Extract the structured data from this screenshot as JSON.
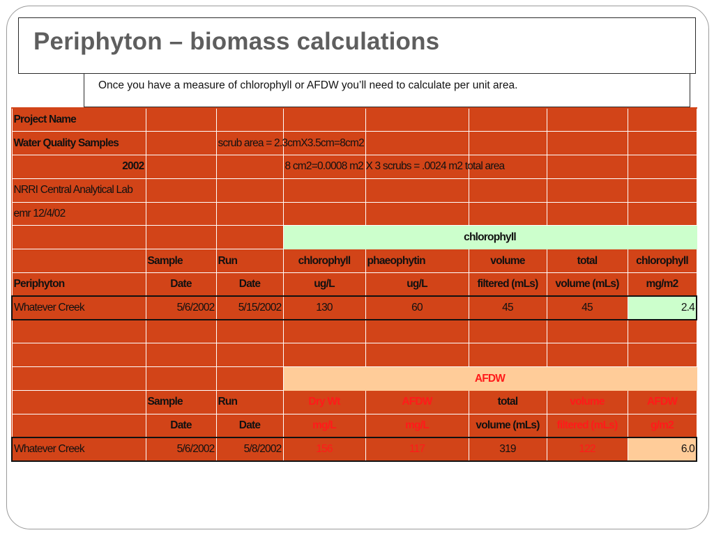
{
  "slide": {
    "title": "Periphyton – biomass calculations",
    "subtitle": "Once you have a measure of chlorophyll or AFDW you’ll need to calculate per unit area."
  },
  "sheet": {
    "project_name": "Project Name",
    "water_quality": "Water Quality Samples",
    "scrub_area": "scrub area = 2.3cmX3.5cm=8cm2",
    "year": "2002",
    "total_area": "8 cm2=0.0008 m2 X 3 scrubs = .0024 m2 total area",
    "lab": "NRRI Central Analytical Lab",
    "emr": "emr 12/4/02",
    "chlorophyll_section": {
      "band_label": "chlorophyll",
      "header1": [
        "",
        "Sample",
        "Run",
        "chlorophyll",
        "phaeophytin",
        "volume",
        "total",
        "chlorophyll"
      ],
      "header2": [
        "Periphyton",
        "Date",
        "Date",
        "ug/L",
        "ug/L",
        "filtered (mLs)",
        "volume (mLs)",
        "mg/m2"
      ],
      "row": [
        "Whatever Creek",
        "5/6/2002",
        "5/15/2002",
        "130",
        "60",
        "45",
        "45",
        "2.4"
      ]
    },
    "afdw_section": {
      "band_label": "AFDW",
      "header1": [
        "",
        "Sample",
        "Run",
        "Dry Wt",
        "AFDW",
        "total",
        "volume",
        "AFDW"
      ],
      "header2": [
        "",
        "Date",
        "Date",
        "mg/L",
        "mg/L",
        "volume (mLs)",
        "filtered (mLs)",
        "g/m2"
      ],
      "row": [
        "Whatever Creek",
        "5/6/2002",
        "5/8/2002",
        "156",
        "117",
        "319",
        "122",
        "6.0"
      ]
    }
  },
  "colors": {
    "sheet_background": "#d24418",
    "chlorophyll_band": "#ccffcc",
    "afdw_band": "#ffcc99",
    "highlight_text": "#ff1a1a",
    "title_text": "#5e5e5e"
  }
}
